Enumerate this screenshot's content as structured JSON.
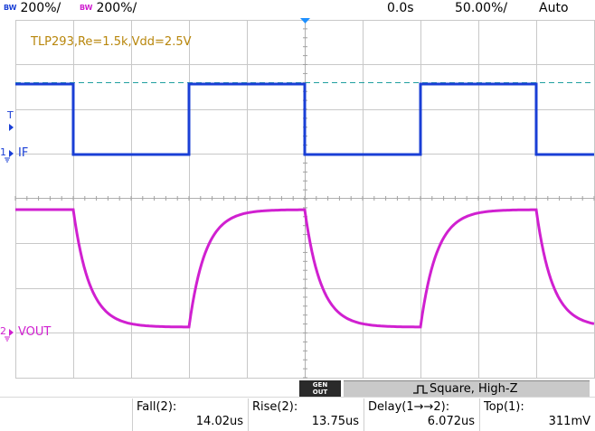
{
  "topbar": {
    "ch1": {
      "bw": "BW",
      "scale": "200%/",
      "color": "#1a3fd6"
    },
    "ch2": {
      "bw": "BW",
      "scale": "200%/",
      "color": "#d020d0"
    },
    "time_offset": "0.0s",
    "timebase": "50.00%/",
    "trigger_mode": "Auto"
  },
  "annotation": {
    "text": "TLP293,Re=1.5k,Vdd=2.5V",
    "color": "#b8860b"
  },
  "channels": {
    "ch1_label": "IF",
    "ch1_number": "1",
    "ch2_label": "VOUT",
    "ch2_number": "2",
    "trigger_marker": "T",
    "ch1_color": "#1a3fd6",
    "ch2_color": "#d020d0"
  },
  "wavegen": {
    "gen_line1": "GEN",
    "gen_line2": "OUT",
    "waveform": "Square, High-Z"
  },
  "measurements": [
    {
      "label": "Fall(2):",
      "value": "14.02us"
    },
    {
      "label": "Rise(2):",
      "value": "13.75us"
    },
    {
      "label": "Delay(1→→2):",
      "value": "6.072us"
    },
    {
      "label": "Top(1):",
      "value": "311mV"
    }
  ]
}
